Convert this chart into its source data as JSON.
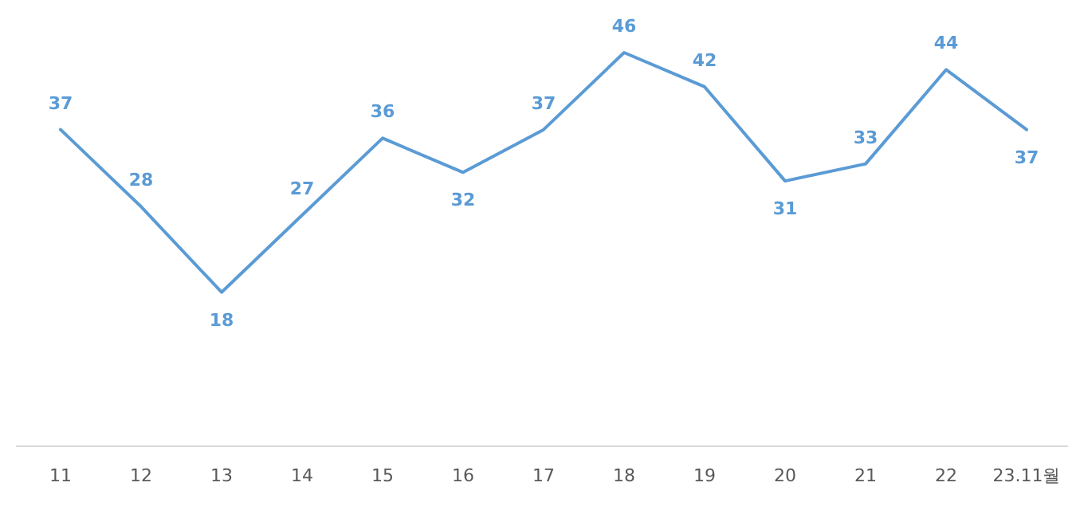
{
  "chart_data": {
    "type": "line",
    "categories": [
      "11",
      "12",
      "13",
      "14",
      "15",
      "16",
      "17",
      "18",
      "19",
      "20",
      "21",
      "22",
      "23.11월"
    ],
    "values": [
      37,
      28,
      18,
      27,
      36,
      32,
      37,
      46,
      42,
      31,
      33,
      44,
      37
    ],
    "color": "#5b9bd5",
    "data_labels": true,
    "marker": "none",
    "line_style": "solid"
  }
}
